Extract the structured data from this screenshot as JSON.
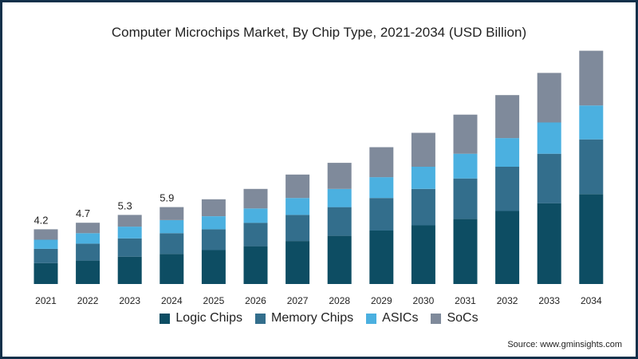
{
  "title": "Computer Microchips Market, By Chip Type,  2021-2034 (USD Billion)",
  "source": "Source: www.gminsights.com",
  "colors": {
    "logic": "#0d4d63",
    "memory": "#336e8c",
    "asics": "#4bb0e0",
    "socs": "#7f8a9b",
    "frame": "#12304a"
  },
  "legend": [
    {
      "label": "Logic Chips",
      "color": "#0d4d63"
    },
    {
      "label": "Memory Chips",
      "color": "#336e8c"
    },
    {
      "label": "ASICs",
      "color": "#4bb0e0"
    },
    {
      "label": "SoCs",
      "color": "#7f8a9b"
    }
  ],
  "chart_data": {
    "type": "bar",
    "stacked": true,
    "title": "Computer Microchips Market, By Chip Type,  2021-2034 (USD Billion)",
    "categories": [
      "2021",
      "2022",
      "2023",
      "2024",
      "2025",
      "2026",
      "2027",
      "2028",
      "2029",
      "2030",
      "2031",
      "2032",
      "2033",
      "2034"
    ],
    "series": [
      {
        "name": "Logic Chips",
        "color": "#0d4d63",
        "values": [
          1.6,
          1.8,
          2.1,
          2.3,
          2.6,
          2.9,
          3.3,
          3.7,
          4.1,
          4.5,
          5.0,
          5.6,
          6.2,
          6.9
        ]
      },
      {
        "name": "Memory Chips",
        "color": "#336e8c",
        "values": [
          1.1,
          1.3,
          1.4,
          1.6,
          1.6,
          1.8,
          2.0,
          2.2,
          2.5,
          2.8,
          3.1,
          3.4,
          3.8,
          4.2
        ]
      },
      {
        "name": "ASICs",
        "color": "#4bb0e0",
        "values": [
          0.7,
          0.8,
          0.9,
          1.0,
          1.0,
          1.1,
          1.3,
          1.4,
          1.6,
          1.7,
          1.9,
          2.2,
          2.4,
          2.6
        ]
      },
      {
        "name": "SoCs",
        "color": "#7f8a9b",
        "values": [
          0.8,
          0.8,
          0.9,
          1.0,
          1.3,
          1.5,
          1.8,
          2.0,
          2.3,
          2.6,
          3.0,
          3.3,
          3.8,
          4.2
        ]
      }
    ],
    "totals_labels": [
      {
        "category": "2021",
        "text": "4.2"
      },
      {
        "category": "2022",
        "text": "4.7"
      },
      {
        "category": "2023",
        "text": "5.3"
      },
      {
        "category": "2024",
        "text": "5.9"
      }
    ],
    "ylim": [
      0,
      18
    ],
    "grid": false,
    "legend_position": "bottom"
  }
}
